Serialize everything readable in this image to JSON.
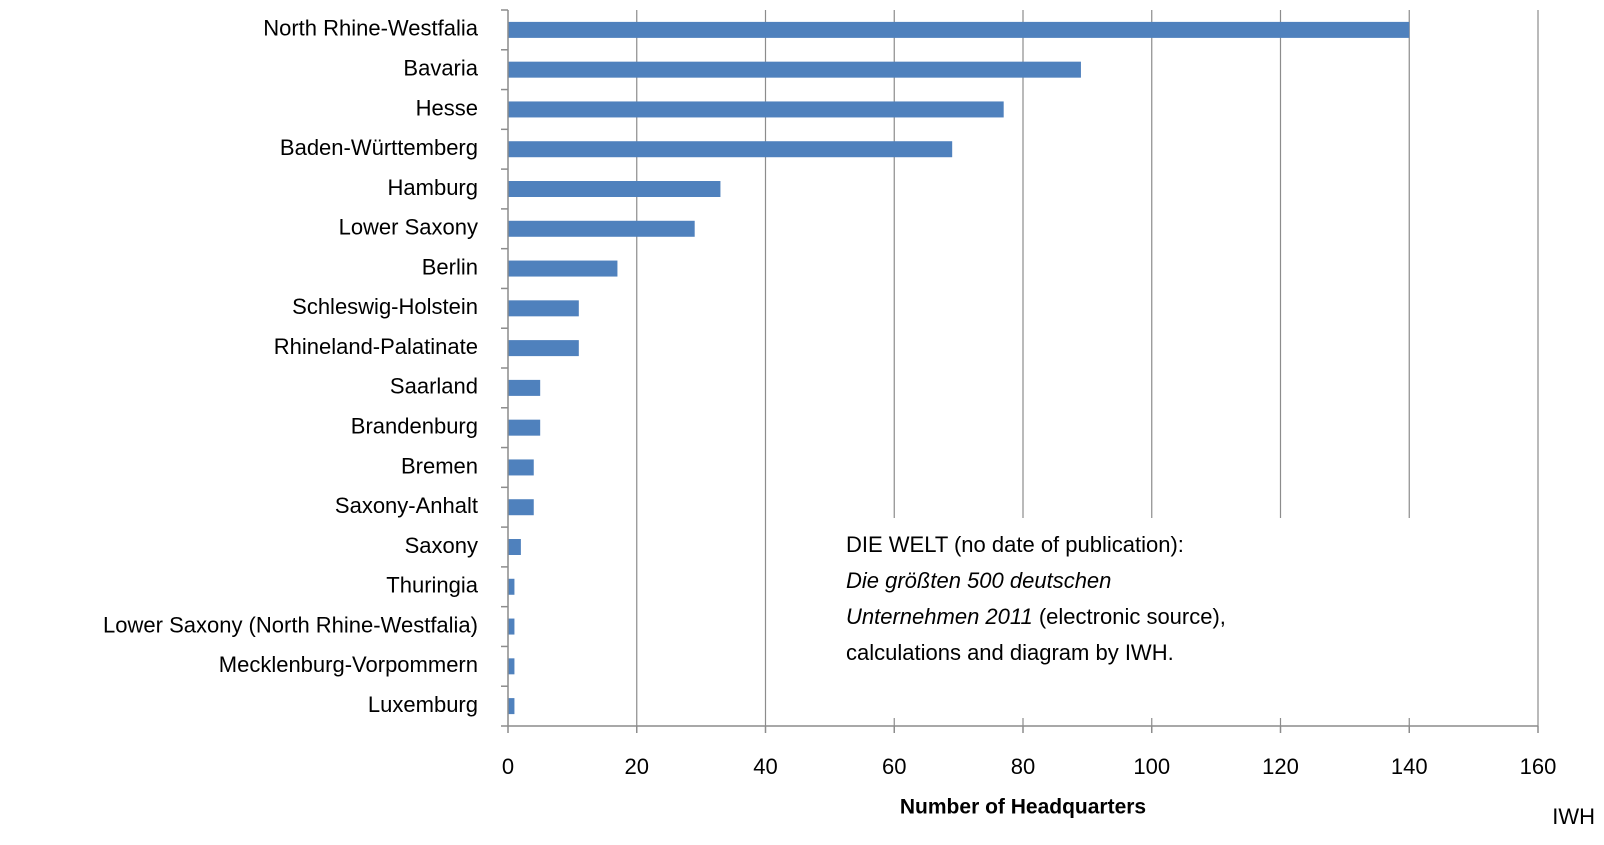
{
  "chart_data": {
    "type": "hbar",
    "categories": [
      "North Rhine-Westfalia",
      "Bavaria",
      "Hesse",
      "Baden-Württemberg",
      "Hamburg",
      "Lower Saxony",
      "Berlin",
      "Schleswig-Holstein",
      "Rhineland-Palatinate",
      "Saarland",
      "Brandenburg",
      "Bremen",
      "Saxony-Anhalt",
      "Saxony",
      "Thuringia",
      "Lower Saxony (North Rhine-Westfalia)",
      "Mecklenburg-Vorpommern",
      "Luxemburg"
    ],
    "values": [
      140,
      89,
      77,
      69,
      33,
      29,
      17,
      11,
      11,
      5,
      5,
      4,
      4,
      2,
      1,
      1,
      1,
      1
    ],
    "color": "#4f81bd",
    "xlim": [
      0,
      160
    ],
    "xticks": [
      0,
      20,
      40,
      60,
      80,
      100,
      120,
      140,
      160
    ],
    "grid": true,
    "x_label": "Number of Headquarters",
    "source": "IWH",
    "annotation": [
      [
        {
          "text": "DIE WELT (no date of publication):",
          "italic": false
        }
      ],
      [
        {
          "text": "Die größten 500 deutschen",
          "italic": true
        }
      ],
      [
        {
          "text": "Unternehmen 2011",
          "italic": true
        },
        {
          "text": " (electronic source),",
          "italic": false
        }
      ],
      [
        {
          "text": "calculations and diagram by IWH.",
          "italic": false
        }
      ]
    ]
  }
}
